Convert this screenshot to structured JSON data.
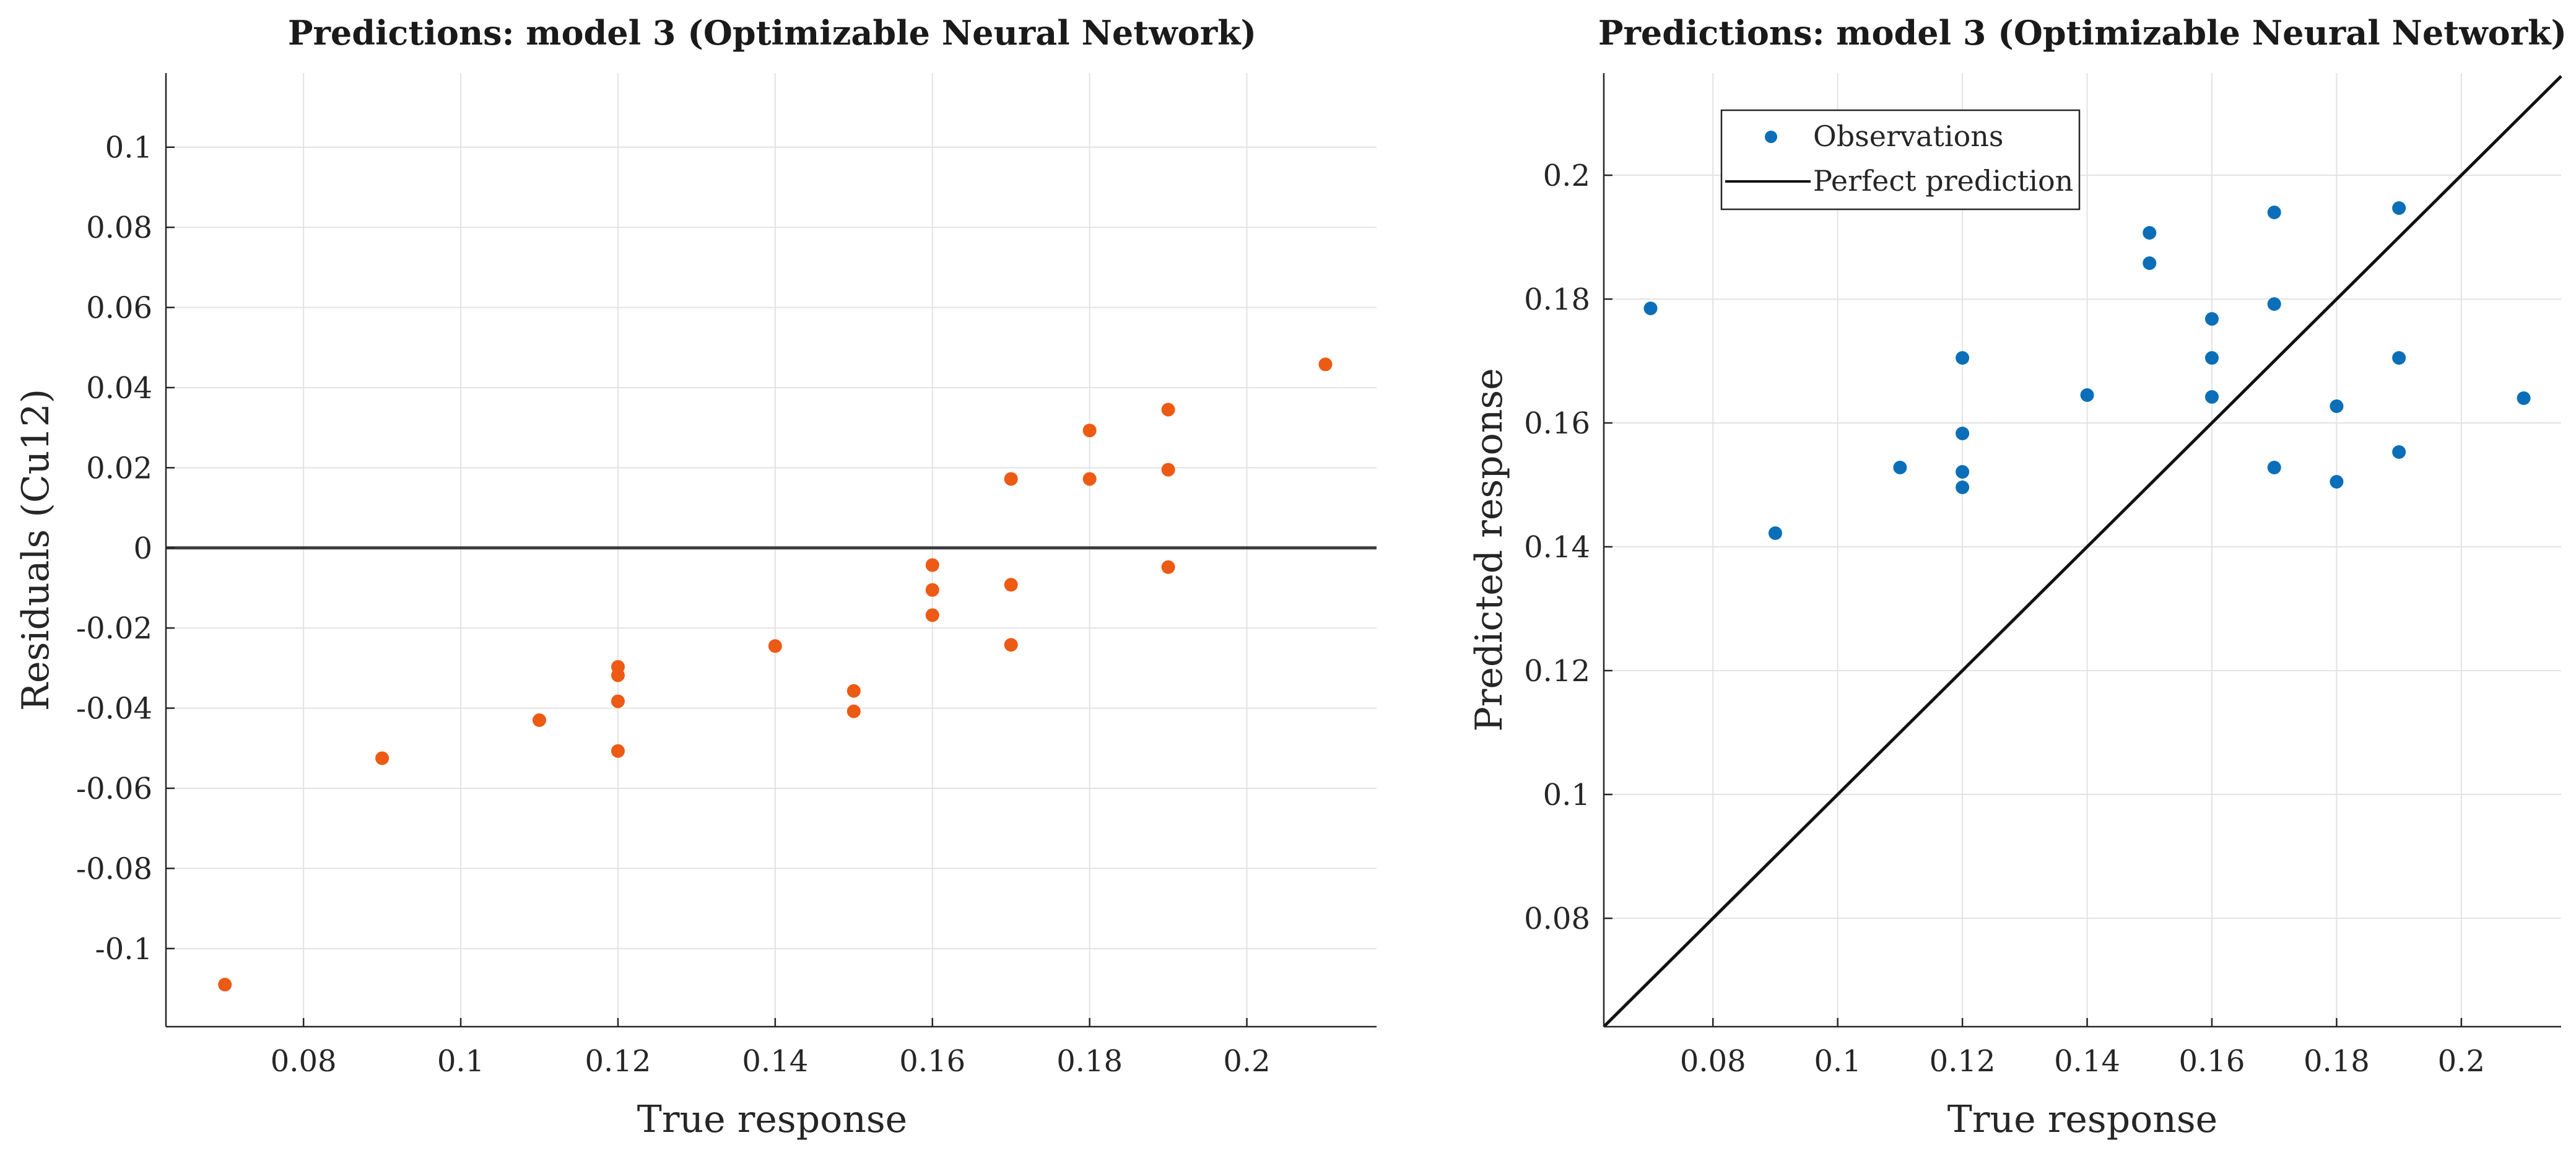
{
  "colors": {
    "residual_points": "#ed5a14",
    "prediction_points": "#0a6fb8",
    "reference_line": "#3c3c3c",
    "perfect_line": "#111111"
  },
  "chart_data": [
    {
      "type": "scatter",
      "title": "Predictions: model 3 (Optimizable Neural Network)",
      "xlabel": "True response",
      "ylabel": "Residuals (Cu12)",
      "xlim": [
        0.0625,
        0.2165
      ],
      "ylim": [
        -0.1195,
        0.1185
      ],
      "xticks": [
        0.08,
        0.1,
        0.12,
        0.14,
        0.16,
        0.18,
        0.2
      ],
      "xtick_labels": [
        "0.08",
        "0.1",
        "0.12",
        "0.14",
        "0.16",
        "0.18",
        "0.2"
      ],
      "yticks": [
        -0.1,
        -0.08,
        -0.06,
        -0.04,
        -0.02,
        0,
        0.02,
        0.04,
        0.06,
        0.08,
        0.1
      ],
      "ytick_labels": [
        "-0.1",
        "-0.08",
        "-0.06",
        "-0.04",
        "-0.02",
        "0",
        "0.02",
        "0.04",
        "0.06",
        "0.08",
        "0.1"
      ],
      "grid": true,
      "reference_line": {
        "type": "horizontal",
        "y": 0
      },
      "series": [
        {
          "name": "Residuals",
          "points": [
            [
              0.07,
              -0.109
            ],
            [
              0.09,
              -0.0525
            ],
            [
              0.11,
              -0.043
            ],
            [
              0.12,
              -0.0297
            ],
            [
              0.12,
              -0.0318
            ],
            [
              0.12,
              -0.0383
            ],
            [
              0.12,
              -0.0507
            ],
            [
              0.14,
              -0.0245
            ],
            [
              0.15,
              -0.0357
            ],
            [
              0.15,
              -0.0408
            ],
            [
              0.16,
              -0.0043
            ],
            [
              0.16,
              -0.0105
            ],
            [
              0.16,
              -0.0168
            ],
            [
              0.17,
              0.0172
            ],
            [
              0.17,
              -0.0092
            ],
            [
              0.17,
              -0.0242
            ],
            [
              0.18,
              0.0293
            ],
            [
              0.18,
              0.0172
            ],
            [
              0.19,
              0.0345
            ],
            [
              0.19,
              0.0195
            ],
            [
              0.19,
              -0.0048
            ],
            [
              0.21,
              0.0458
            ]
          ]
        }
      ]
    },
    {
      "type": "scatter",
      "title": "Predictions: model 3 (Optimizable Neural Network)",
      "xlabel": "True response",
      "ylabel": "Predicted response",
      "xlim": [
        0.0625,
        0.216
      ],
      "ylim": [
        0.0625,
        0.2165
      ],
      "xticks": [
        0.08,
        0.1,
        0.12,
        0.14,
        0.16,
        0.18,
        0.2
      ],
      "xtick_labels": [
        "0.08",
        "0.1",
        "0.12",
        "0.14",
        "0.16",
        "0.18",
        "0.2"
      ],
      "yticks": [
        0.08,
        0.1,
        0.12,
        0.14,
        0.16,
        0.18,
        0.2
      ],
      "ytick_labels": [
        "0.08",
        "0.1",
        "0.12",
        "0.14",
        "0.16",
        "0.18",
        "0.2"
      ],
      "grid": true,
      "legend": {
        "position": "top-left",
        "entries": [
          "Observations",
          "Perfect prediction"
        ]
      },
      "series": [
        {
          "name": "Observations",
          "points": [
            [
              0.07,
              0.1785
            ],
            [
              0.09,
              0.1422
            ],
            [
              0.11,
              0.1528
            ],
            [
              0.12,
              0.1705
            ],
            [
              0.12,
              0.1583
            ],
            [
              0.12,
              0.1521
            ],
            [
              0.12,
              0.1496
            ],
            [
              0.14,
              0.1645
            ],
            [
              0.15,
              0.1907
            ],
            [
              0.15,
              0.1858
            ],
            [
              0.16,
              0.1768
            ],
            [
              0.16,
              0.1705
            ],
            [
              0.16,
              0.1642
            ],
            [
              0.17,
              0.194
            ],
            [
              0.17,
              0.1792
            ],
            [
              0.17,
              0.1528
            ],
            [
              0.18,
              0.1627
            ],
            [
              0.18,
              0.1505
            ],
            [
              0.19,
              0.1947
            ],
            [
              0.19,
              0.1705
            ],
            [
              0.19,
              0.1553
            ],
            [
              0.21,
              0.164
            ]
          ]
        },
        {
          "name": "Perfect prediction",
          "line": [
            [
              0.0625,
              0.0625
            ],
            [
              0.216,
              0.216
            ]
          ]
        }
      ]
    }
  ]
}
